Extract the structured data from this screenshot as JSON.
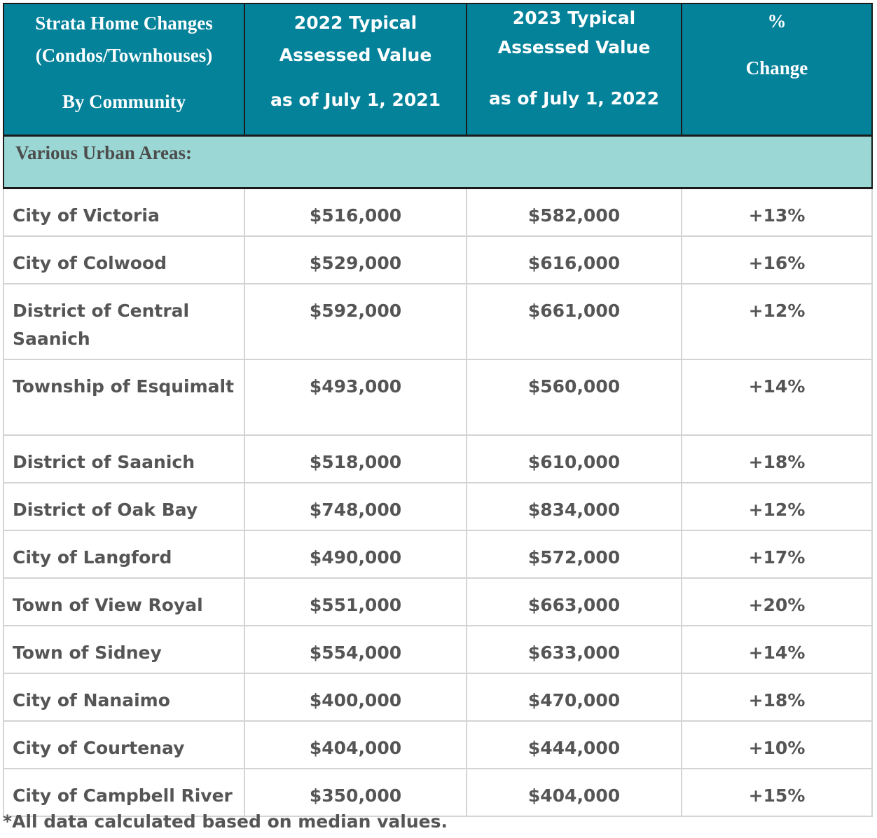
{
  "chart_data": {
    "type": "table",
    "header": {
      "col1": [
        "Strata Home Changes",
        "(Condos/Townhouses)",
        "By Community"
      ],
      "col2": [
        "2022 Typical",
        "Assessed Value",
        "as of July 1, 2021"
      ],
      "col3": [
        "2023 Typical",
        "Assessed Value",
        "as of July 1, 2022"
      ],
      "col4": [
        "%",
        "Change"
      ]
    },
    "section_label": "Various Urban Areas:",
    "rows": [
      {
        "community": "City of Victoria",
        "value_2022": "$516,000",
        "value_2023": "$582,000",
        "change": "+13%"
      },
      {
        "community": "City of Colwood",
        "value_2022": "$529,000",
        "value_2023": "$616,000",
        "change": "+16%"
      },
      {
        "community": "District of Central Saanich",
        "value_2022": "$592,000",
        "value_2023": "$661,000",
        "change": "+12%"
      },
      {
        "community": "Township of Esquimalt",
        "value_2022": "$493,000",
        "value_2023": "$560,000",
        "change": "+14%"
      },
      {
        "community": "District of Saanich",
        "value_2022": "$518,000",
        "value_2023": "$610,000",
        "change": "+18%"
      },
      {
        "community": "District of Oak Bay",
        "value_2022": "$748,000",
        "value_2023": "$834,000",
        "change": "+12%"
      },
      {
        "community": "City of Langford",
        "value_2022": "$490,000",
        "value_2023": "$572,000",
        "change": "+17%"
      },
      {
        "community": "Town of View Royal",
        "value_2022": "$551,000",
        "value_2023": "$663,000",
        "change": "+20%"
      },
      {
        "community": "Town of Sidney",
        "value_2022": "$554,000",
        "value_2023": "$633,000",
        "change": "+14%"
      },
      {
        "community": "City of Nanaimo",
        "value_2022": "$400,000",
        "value_2023": "$470,000",
        "change": "+18%"
      },
      {
        "community": "City of Courtenay",
        "value_2022": "$404,000",
        "value_2023": "$444,000",
        "change": "+10%"
      },
      {
        "community": "City of Campbell River",
        "value_2022": "$350,000",
        "value_2023": "$404,000",
        "change": "+15%"
      }
    ],
    "footnote": "*All data calculated based on median values.",
    "colors": {
      "header_bg": "#04829a",
      "section_bg": "#9bd8d5",
      "text": "#555555"
    }
  }
}
